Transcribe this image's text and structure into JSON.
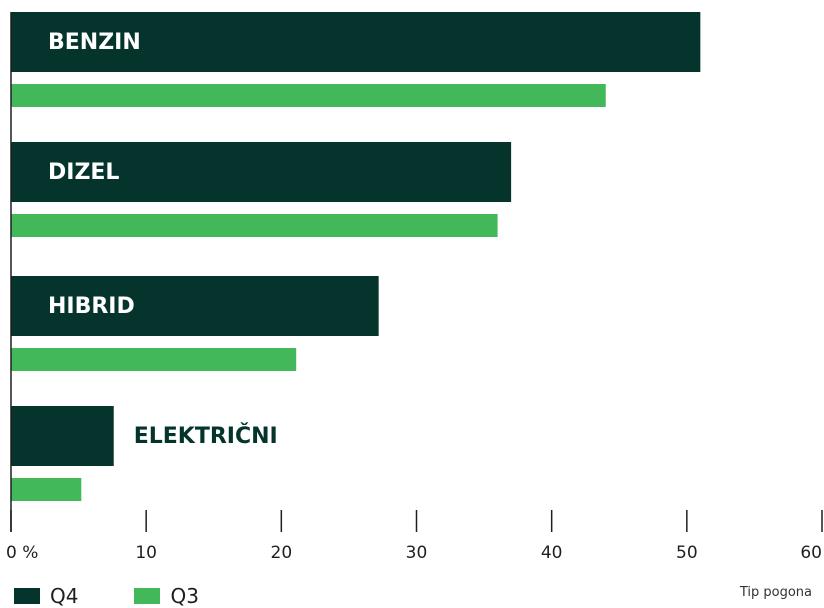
{
  "chart_data": {
    "type": "bar",
    "orientation": "horizontal",
    "categories": [
      "BENZIN",
      "DIZEL",
      "HIBRID",
      "ELEKTRIČNI"
    ],
    "series": [
      {
        "name": "Q4",
        "values": [
          51,
          37,
          27.2,
          7.6
        ],
        "color": "#04342c"
      },
      {
        "name": "Q3",
        "values": [
          44,
          36,
          21.1,
          5.2
        ],
        "color": "#42b85a"
      }
    ],
    "x_ticks": [
      0,
      10,
      20,
      30,
      40,
      50,
      60
    ],
    "x_tick_labels": [
      "0 %",
      "10",
      "20",
      "30",
      "40",
      "50",
      "60"
    ],
    "xlim": [
      0,
      60
    ],
    "grid": false,
    "legend_position": "bottom-left",
    "axis_caption": "Tip pogona"
  }
}
